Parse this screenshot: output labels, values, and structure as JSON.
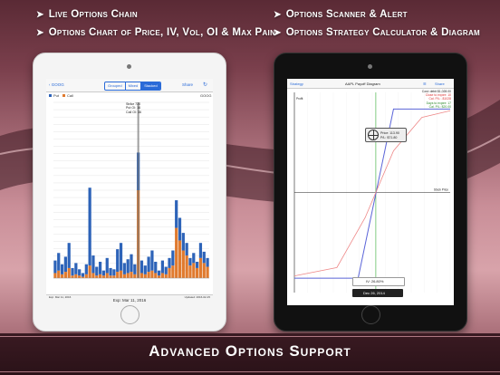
{
  "features": {
    "left": [
      "Live Options Chain",
      "Options Chart of Price, IV, Vol, OI & Max Pain"
    ],
    "right": [
      "Options Scanner & Alert",
      "Options Strategy Calculator & Diagram"
    ]
  },
  "banner": "Advanced Options Support",
  "left_screen": {
    "back_label": "GOOG",
    "segments": [
      "Grouped",
      "Mixed",
      "Stacked"
    ],
    "selected_segment": "Stacked",
    "share_label": "Share",
    "right_label": "GOOG",
    "legend": [
      "Put",
      "Call"
    ],
    "tooltip": [
      "Strike 720",
      "Put OI: 16",
      "Call OI: 36"
    ],
    "footer_left": "Exp: Mar 11, 2016",
    "footer_center": "Exp: Mar 11, 2016",
    "footer_right": "Updated: 2016-02-15",
    "colors": {
      "put": "#2d63b8",
      "call": "#e07a2e"
    },
    "chart_data": {
      "type": "bar",
      "stacked": true,
      "series": [
        {
          "name": "Put",
          "values": [
            10,
            14,
            8,
            12,
            20,
            6,
            9,
            5,
            3,
            8,
            62,
            14,
            7,
            10,
            4,
            12,
            6,
            5,
            18,
            22,
            9,
            11,
            14,
            8,
            30,
            10,
            7,
            12,
            16,
            9,
            4,
            10,
            6,
            8,
            12,
            22,
            18,
            14,
            10,
            6,
            8,
            5,
            12,
            9,
            7
          ]
        },
        {
          "name": "Call",
          "values": [
            4,
            6,
            3,
            5,
            8,
            2,
            3,
            2,
            1,
            3,
            10,
            4,
            2,
            3,
            2,
            4,
            2,
            2,
            5,
            6,
            3,
            4,
            5,
            3,
            70,
            4,
            3,
            5,
            6,
            4,
            2,
            4,
            3,
            8,
            10,
            40,
            30,
            22,
            18,
            10,
            12,
            8,
            16,
            12,
            9
          ]
        }
      ]
    }
  },
  "right_screen": {
    "back_label": "Strategy",
    "title": "AAPL Payoff Diagram",
    "share_label": "Share",
    "info": [
      "Cost: debit $1,028.00",
      "Close to expire: 10",
      "Cal. P/L: -$1028",
      "Days to expire: 17",
      "Cal. P/L: $20.00"
    ],
    "price_box": [
      "Price: 113.90",
      "P/L: $71.80"
    ],
    "iv_label": "IV: 26.80%",
    "date_label": "Dec 26, 2014",
    "x_axis_label": "Stock Price",
    "y_axis_label": "Profit",
    "chart_data": {
      "type": "line",
      "series": [
        {
          "name": "",
          "x": [
            98,
            107,
            112,
            120
          ],
          "y": [
            -1028,
            -1028,
            1000,
            1000
          ]
        },
        {
          "name": "",
          "x": [
            98,
            104,
            108,
            112,
            116,
            120
          ],
          "y": [
            -1000,
            -900,
            -300,
            500,
            900,
            980
          ]
        }
      ]
    }
  }
}
